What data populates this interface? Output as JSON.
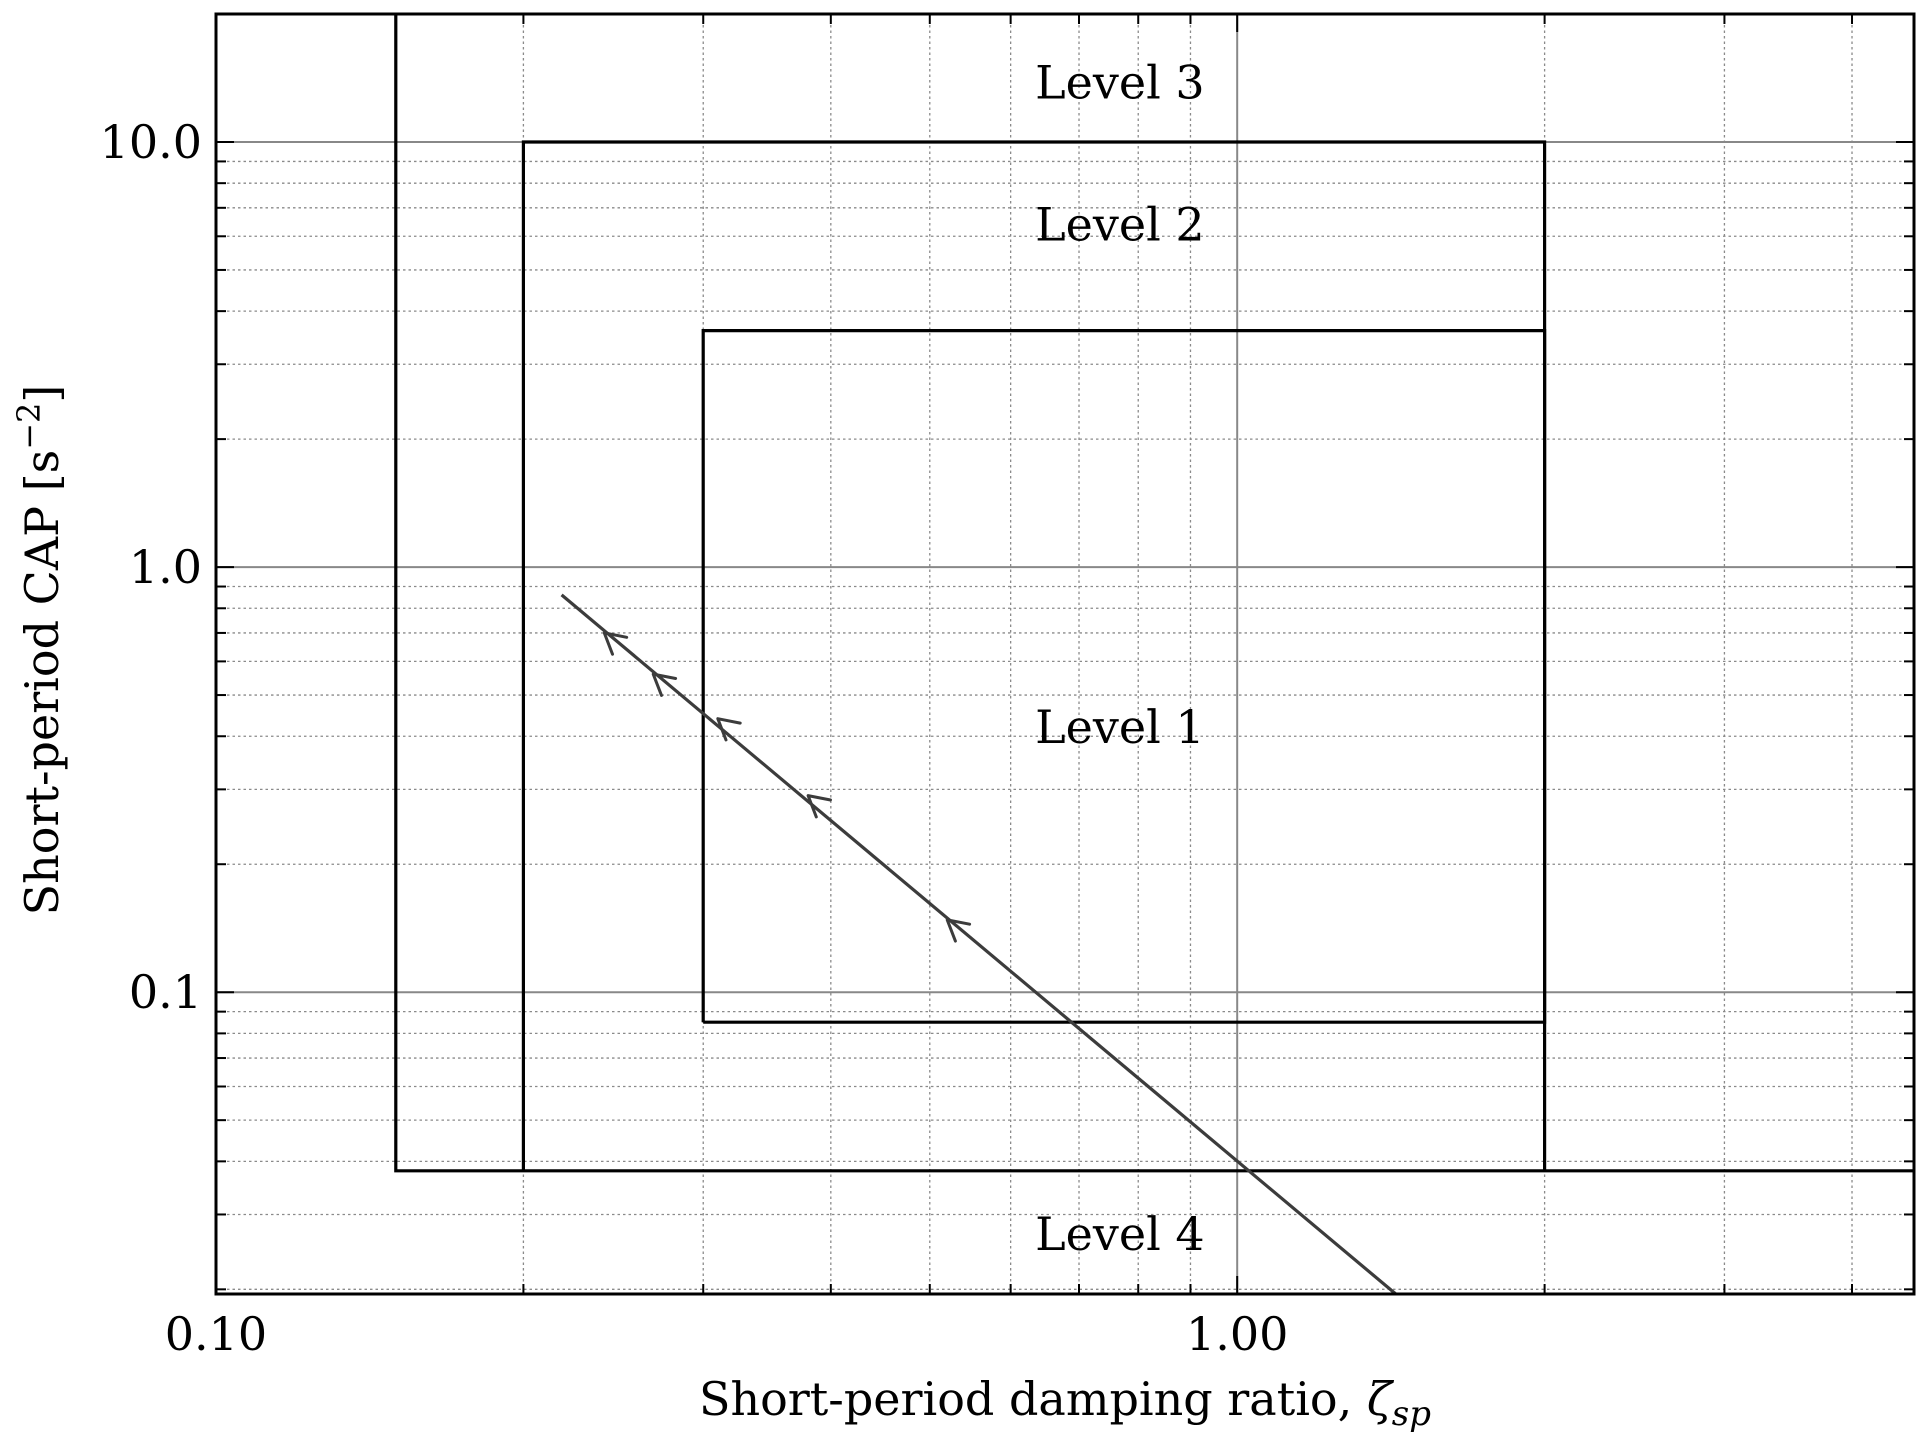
{
  "chart_data": {
    "type": "line",
    "title": "",
    "xlabel": "Short-period damping ratio, ",
    "xlabel_symbol": "ζ",
    "xlabel_subscript": "sp",
    "ylabel": "Short-period CAP [s",
    "ylabel_exponent": "−2",
    "ylabel_suffix": "]",
    "xscale": "log",
    "yscale": "log",
    "xlim": [
      0.1,
      4.6
    ],
    "ylim": [
      0.0195,
      20.0
    ],
    "grid": true,
    "xticks": [
      {
        "value": 0.1,
        "label": "0.10"
      },
      {
        "value": 1.0,
        "label": "1.00"
      }
    ],
    "yticks": [
      {
        "value": 0.1,
        "label": "0.1"
      },
      {
        "value": 1.0,
        "label": "1.0"
      },
      {
        "value": 10.0,
        "label": "10.0"
      }
    ],
    "boundaries": [
      {
        "name": "level-1-boundary",
        "points": [
          [
            0.3,
            0.085
          ],
          [
            2.0,
            0.085
          ],
          [
            2.0,
            3.6
          ],
          [
            0.3,
            3.6
          ],
          [
            0.3,
            0.085
          ]
        ]
      },
      {
        "name": "level-2-boundary",
        "points": [
          [
            0.2,
            0.038
          ],
          [
            0.2,
            10.0
          ],
          [
            2.0,
            10.0
          ],
          [
            2.0,
            0.038
          ]
        ]
      },
      {
        "name": "level-3-boundary",
        "points": [
          [
            0.15,
            20.0
          ],
          [
            0.15,
            0.038
          ],
          [
            4.6,
            0.038
          ]
        ]
      }
    ],
    "region_labels": [
      {
        "text": "Level 3",
        "x": 0.7,
        "y": 13.8
      },
      {
        "text": "Level 2",
        "x": 0.7,
        "y": 6.4
      },
      {
        "text": "Level 1",
        "x": 0.7,
        "y": 0.42
      },
      {
        "text": "Level 4",
        "x": 0.7,
        "y": 0.027
      }
    ],
    "series": [
      {
        "x": [
          0.218,
          1.43
        ],
        "y": [
          0.86,
          0.0195
        ],
        "arrows_at": [
          {
            "x": 0.24,
            "y": 0.7
          },
          {
            "x": 0.268,
            "y": 0.56
          },
          {
            "x": 0.31,
            "y": 0.44
          },
          {
            "x": 0.38,
            "y": 0.29
          },
          {
            "x": 0.52,
            "y": 0.148
          }
        ]
      }
    ]
  }
}
